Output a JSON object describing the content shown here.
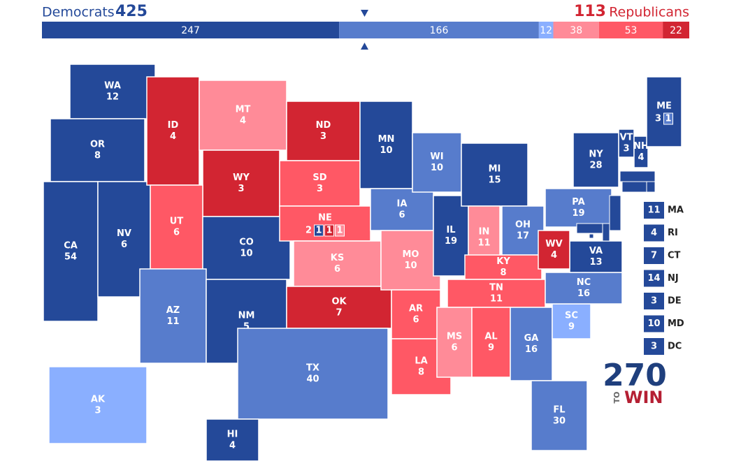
{
  "header": {
    "dem_label": "Democrats",
    "dem_total": 425,
    "rep_total": 113,
    "rep_label": "Republicans"
  },
  "ratings": {
    "safe_d": "#244999",
    "likely_d": "#577ccc",
    "lean_d": "#8aafff",
    "lean_r": "#ff8b98",
    "likely_r": "#ff5865",
    "safe_r": "#d22532"
  },
  "bar": [
    {
      "value": 247,
      "rating": "safe_d"
    },
    {
      "value": 166,
      "rating": "likely_d"
    },
    {
      "value": 12,
      "rating": "lean_d"
    },
    {
      "value": 38,
      "rating": "lean_r"
    },
    {
      "value": 53,
      "rating": "likely_r"
    },
    {
      "value": 22,
      "rating": "safe_r"
    }
  ],
  "states": [
    {
      "abbr": "WA",
      "votes": 12,
      "rating": "safe_d"
    },
    {
      "abbr": "OR",
      "votes": 8,
      "rating": "safe_d"
    },
    {
      "abbr": "CA",
      "votes": 54,
      "rating": "safe_d"
    },
    {
      "abbr": "NV",
      "votes": 6,
      "rating": "safe_d"
    },
    {
      "abbr": "ID",
      "votes": 4,
      "rating": "safe_r"
    },
    {
      "abbr": "MT",
      "votes": 4,
      "rating": "lean_r"
    },
    {
      "abbr": "WY",
      "votes": 3,
      "rating": "safe_r"
    },
    {
      "abbr": "UT",
      "votes": 6,
      "rating": "likely_r"
    },
    {
      "abbr": "CO",
      "votes": 10,
      "rating": "safe_d"
    },
    {
      "abbr": "AZ",
      "votes": 11,
      "rating": "likely_d"
    },
    {
      "abbr": "NM",
      "votes": 5,
      "rating": "safe_d"
    },
    {
      "abbr": "ND",
      "votes": 3,
      "rating": "safe_r"
    },
    {
      "abbr": "SD",
      "votes": 3,
      "rating": "likely_r"
    },
    {
      "abbr": "NE",
      "votes": 2,
      "rating": "likely_r",
      "districts": [
        {
          "votes": 1,
          "rating": "safe_d"
        },
        {
          "votes": 1,
          "rating": "safe_r"
        },
        {
          "votes": 1,
          "rating": "lean_r"
        }
      ]
    },
    {
      "abbr": "KS",
      "votes": 6,
      "rating": "lean_r"
    },
    {
      "abbr": "OK",
      "votes": 7,
      "rating": "safe_r"
    },
    {
      "abbr": "TX",
      "votes": 40,
      "rating": "likely_d"
    },
    {
      "abbr": "MN",
      "votes": 10,
      "rating": "safe_d"
    },
    {
      "abbr": "IA",
      "votes": 6,
      "rating": "likely_d"
    },
    {
      "abbr": "MO",
      "votes": 10,
      "rating": "lean_r"
    },
    {
      "abbr": "AR",
      "votes": 6,
      "rating": "likely_r"
    },
    {
      "abbr": "LA",
      "votes": 8,
      "rating": "likely_r"
    },
    {
      "abbr": "WI",
      "votes": 10,
      "rating": "likely_d"
    },
    {
      "abbr": "IL",
      "votes": 19,
      "rating": "safe_d"
    },
    {
      "abbr": "MI",
      "votes": 15,
      "rating": "safe_d"
    },
    {
      "abbr": "IN",
      "votes": 11,
      "rating": "lean_r"
    },
    {
      "abbr": "OH",
      "votes": 17,
      "rating": "likely_d"
    },
    {
      "abbr": "KY",
      "votes": 8,
      "rating": "likely_r"
    },
    {
      "abbr": "TN",
      "votes": 11,
      "rating": "likely_r"
    },
    {
      "abbr": "MS",
      "votes": 6,
      "rating": "lean_r"
    },
    {
      "abbr": "AL",
      "votes": 9,
      "rating": "likely_r"
    },
    {
      "abbr": "GA",
      "votes": 16,
      "rating": "likely_d"
    },
    {
      "abbr": "FL",
      "votes": 30,
      "rating": "likely_d"
    },
    {
      "abbr": "SC",
      "votes": 9,
      "rating": "lean_d"
    },
    {
      "abbr": "NC",
      "votes": 16,
      "rating": "likely_d"
    },
    {
      "abbr": "VA",
      "votes": 13,
      "rating": "safe_d"
    },
    {
      "abbr": "WV",
      "votes": 4,
      "rating": "safe_r"
    },
    {
      "abbr": "PA",
      "votes": 19,
      "rating": "likely_d"
    },
    {
      "abbr": "NY",
      "votes": 28,
      "rating": "safe_d"
    },
    {
      "abbr": "VT",
      "votes": 3,
      "rating": "safe_d"
    },
    {
      "abbr": "NH",
      "votes": 4,
      "rating": "safe_d"
    },
    {
      "abbr": "ME",
      "votes": 3,
      "rating": "safe_d",
      "districts": [
        {
          "votes": 1,
          "rating": "likely_d"
        }
      ]
    },
    {
      "abbr": "AK",
      "votes": 3,
      "rating": "lean_d"
    },
    {
      "abbr": "HI",
      "votes": 4,
      "rating": "safe_d"
    }
  ],
  "small_states": [
    {
      "abbr": "MA",
      "votes": 11,
      "rating": "safe_d"
    },
    {
      "abbr": "RI",
      "votes": 4,
      "rating": "safe_d"
    },
    {
      "abbr": "CT",
      "votes": 7,
      "rating": "safe_d"
    },
    {
      "abbr": "NJ",
      "votes": 14,
      "rating": "safe_d"
    },
    {
      "abbr": "DE",
      "votes": 3,
      "rating": "safe_d"
    },
    {
      "abbr": "MD",
      "votes": 10,
      "rating": "safe_d"
    },
    {
      "abbr": "DC",
      "votes": 3,
      "rating": "safe_d"
    }
  ],
  "logo": {
    "number": "270",
    "small": "TO",
    "word": "WIN"
  }
}
